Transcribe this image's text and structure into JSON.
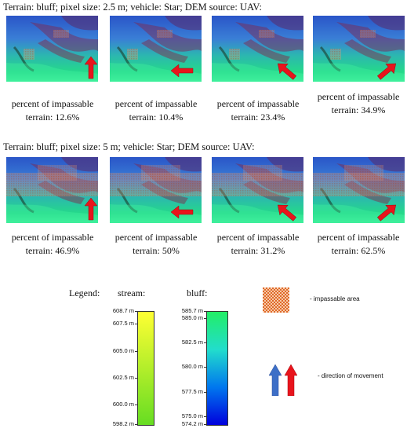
{
  "rows": [
    {
      "title": "Terrain: bluff; pixel size: 2.5 m; vehicle: Star; DEM source: UAV:",
      "panels": [
        {
          "caption": "percent of impassable terrain: 12.6%",
          "arrow_direction": "up"
        },
        {
          "caption": "percent of impassable terrain: 10.4%",
          "arrow_direction": "left"
        },
        {
          "caption": "percent of impassable terrain: 23.4%",
          "arrow_direction": "up-left"
        },
        {
          "caption": "percent of impassable terrain: 34.9%",
          "arrow_direction": "up-right"
        }
      ]
    },
    {
      "title": "Terrain: bluff; pixel size: 5 m; vehicle: Star; DEM source: UAV:",
      "panels": [
        {
          "caption": "percent of impassable terrain: 46.9%",
          "arrow_direction": "up"
        },
        {
          "caption": "percent of impassable terrain: 50%",
          "arrow_direction": "left"
        },
        {
          "caption": "percent of impassable terrain: 31.2%",
          "arrow_direction": "up-left"
        },
        {
          "caption": "percent of impassable terrain: 62.5%",
          "arrow_direction": "up-right"
        }
      ]
    }
  ],
  "legend": {
    "label": "Legend:",
    "stream": {
      "title": "stream:",
      "ticks": [
        "608.7 m",
        "607.5 m",
        "605.0 m",
        "602.5 m",
        "600.0 m",
        "598.2 m"
      ],
      "tick_values": [
        608.7,
        607.5,
        605.0,
        602.5,
        600.0,
        598.2
      ],
      "colors": [
        "#ffff33",
        "#66dd22"
      ]
    },
    "bluff": {
      "title": "bluff:",
      "ticks": [
        "585.7 m",
        "585.0 m",
        "582.5 m",
        "580.0 m",
        "577.5 m",
        "575.0 m",
        "574.2 m"
      ],
      "tick_values": [
        585.7,
        585.0,
        582.5,
        580.0,
        577.5,
        575.0,
        574.2
      ],
      "colors": [
        "#22ee66",
        "#22ddcc",
        "#0077ee",
        "#0000dd"
      ]
    },
    "impassable_label": "- impassable area",
    "direction_label": "- direction of movement",
    "arrow_colors": {
      "blue": "#3d6fc7",
      "red": "#e8141c"
    }
  }
}
